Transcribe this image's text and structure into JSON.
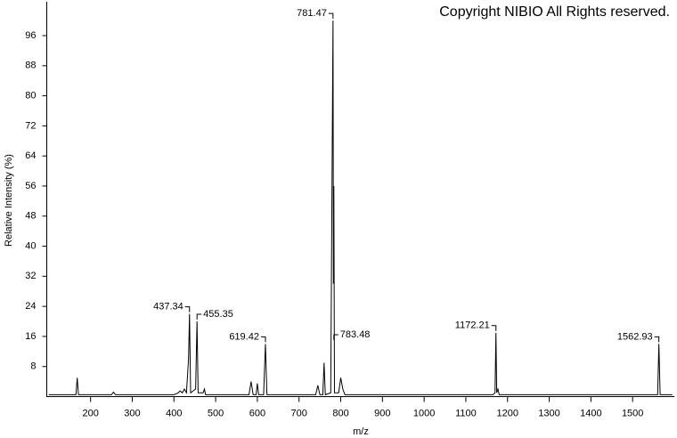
{
  "chart_data": {
    "type": "line",
    "annotation": "Copyright NIBIO All Rights reserved.",
    "x_label": "m/z",
    "y_label": "Relative Intensity (%)",
    "xlim": [
      95,
      1600
    ],
    "ylim": [
      0,
      105
    ],
    "xticks": [
      200,
      300,
      400,
      500,
      600,
      700,
      800,
      900,
      1000,
      1100,
      1200,
      1300,
      1400,
      1500
    ],
    "yticks": [
      8,
      16,
      24,
      32,
      40,
      48,
      56,
      64,
      72,
      80,
      88,
      96
    ],
    "color": "#000000",
    "x": [
      100,
      165,
      168,
      171,
      175,
      250,
      255,
      260,
      400,
      410,
      415,
      420,
      425,
      430,
      435,
      437.34,
      440,
      452,
      455.35,
      458,
      470,
      473,
      476,
      580,
      585,
      590,
      597,
      600,
      603,
      615,
      619.42,
      623,
      740,
      745,
      750,
      757,
      760,
      763,
      776,
      781.47,
      782.5,
      783.48,
      785,
      795,
      800,
      805,
      810,
      1165,
      1170,
      1172.21,
      1174,
      1177,
      1180,
      1560,
      1562.93,
      1566,
      1595
    ],
    "values": [
      0.5,
      0.5,
      5,
      0.5,
      0.5,
      0.5,
      1.2,
      0.5,
      0.5,
      1,
      1.5,
      1,
      2,
      1,
      10,
      22,
      1,
      2,
      20,
      1,
      1,
      2,
      0.5,
      0.5,
      4,
      0.5,
      0.5,
      3.5,
      0.5,
      0.5,
      14,
      0.5,
      0.5,
      3,
      0.5,
      0.5,
      9,
      0.5,
      1,
      100,
      30,
      56,
      1,
      1,
      5,
      2,
      0.5,
      0.5,
      1,
      17,
      1,
      2,
      0.5,
      0.5,
      14,
      0.5,
      0.5
    ],
    "peak_labels": [
      437.34,
      455.35,
      619.42,
      781.47,
      783.48,
      1172.21,
      1562.93
    ]
  }
}
